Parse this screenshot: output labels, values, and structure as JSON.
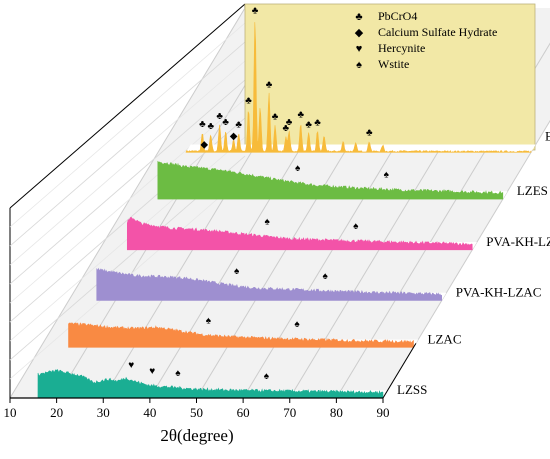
{
  "chart_data": {
    "type": "area",
    "title": "",
    "xlabel": "2θ(degree)",
    "ylabel": "",
    "xlim": [
      10,
      90
    ],
    "xticks": [
      10,
      20,
      30,
      40,
      50,
      60,
      70,
      80,
      90
    ],
    "grid": true,
    "legend_position": "top-right",
    "legend": [
      {
        "symbol": "♣",
        "label": "PbCrO4"
      },
      {
        "symbol": "◆",
        "label": "Calcium Sulfate Hydrate"
      },
      {
        "symbol": "♥",
        "label": "Hercynite"
      },
      {
        "symbol": "♠",
        "label": "Wstite"
      }
    ],
    "series": [
      {
        "name": "LZSS",
        "color": "#1aae93",
        "x_start": 16,
        "x_end": 90,
        "profile": [
          [
            16,
            0.38
          ],
          [
            20,
            0.44
          ],
          [
            25,
            0.36
          ],
          [
            28,
            0.25
          ],
          [
            31,
            0.3
          ],
          [
            33,
            0.27
          ],
          [
            35,
            0.32
          ],
          [
            37,
            0.26
          ],
          [
            40,
            0.2
          ],
          [
            45,
            0.17
          ],
          [
            50,
            0.14
          ],
          [
            55,
            0.13
          ],
          [
            60,
            0.12
          ],
          [
            70,
            0.11
          ],
          [
            80,
            0.1
          ],
          [
            90,
            0.09
          ]
        ],
        "markers": [
          {
            "x": 36,
            "symbol": "♥"
          },
          {
            "x": 40.5,
            "symbol": "♥"
          },
          {
            "x": 46,
            "symbol": "♠"
          },
          {
            "x": 65,
            "symbol": "♠"
          }
        ]
      },
      {
        "name": "LZAC",
        "color": "#f98a43",
        "x_start": 16,
        "x_end": 90,
        "profile": [
          [
            16,
            0.38
          ],
          [
            20,
            0.36
          ],
          [
            25,
            0.32
          ],
          [
            30,
            0.3
          ],
          [
            35,
            0.32
          ],
          [
            40,
            0.26
          ],
          [
            45,
            0.2
          ],
          [
            50,
            0.17
          ],
          [
            60,
            0.14
          ],
          [
            70,
            0.12
          ],
          [
            80,
            0.1
          ],
          [
            90,
            0.09
          ]
        ],
        "markers": [
          {
            "x": 46,
            "symbol": "♠"
          },
          {
            "x": 65,
            "symbol": "♠"
          }
        ]
      },
      {
        "name": "PVA-KH-LZAC",
        "color": "#9e8fd0",
        "x_start": 16,
        "x_end": 90,
        "profile": [
          [
            16,
            0.5
          ],
          [
            19,
            0.46
          ],
          [
            24,
            0.4
          ],
          [
            30,
            0.38
          ],
          [
            35,
            0.36
          ],
          [
            40,
            0.3
          ],
          [
            45,
            0.24
          ],
          [
            50,
            0.2
          ],
          [
            60,
            0.17
          ],
          [
            70,
            0.14
          ],
          [
            80,
            0.12
          ],
          [
            90,
            0.1
          ]
        ],
        "markers": [
          {
            "x": 46,
            "symbol": "♠"
          },
          {
            "x": 65,
            "symbol": "♠"
          }
        ]
      },
      {
        "name": "PVA-KH-LZES",
        "color": "#f353a8",
        "x_start": 16,
        "x_end": 90,
        "profile": [
          [
            16,
            0.45
          ],
          [
            17,
            0.52
          ],
          [
            19,
            0.42
          ],
          [
            25,
            0.35
          ],
          [
            30,
            0.33
          ],
          [
            35,
            0.3
          ],
          [
            40,
            0.26
          ],
          [
            45,
            0.22
          ],
          [
            50,
            0.18
          ],
          [
            60,
            0.15
          ],
          [
            70,
            0.13
          ],
          [
            80,
            0.11
          ],
          [
            90,
            0.09
          ]
        ],
        "markers": [
          {
            "x": 46,
            "symbol": "♠"
          },
          {
            "x": 65,
            "symbol": "♠"
          }
        ]
      },
      {
        "name": "LZES",
        "color": "#6cbc43",
        "x_start": 16,
        "x_end": 90,
        "profile": [
          [
            16,
            0.6
          ],
          [
            18,
            0.58
          ],
          [
            22,
            0.52
          ],
          [
            25,
            0.5
          ],
          [
            30,
            0.46
          ],
          [
            35,
            0.4
          ],
          [
            40,
            0.33
          ],
          [
            45,
            0.27
          ],
          [
            50,
            0.22
          ],
          [
            60,
            0.17
          ],
          [
            70,
            0.14
          ],
          [
            80,
            0.12
          ],
          [
            90,
            0.1
          ]
        ],
        "markers": [
          {
            "x": 46,
            "symbol": "♠"
          },
          {
            "x": 65,
            "symbol": "♠"
          }
        ]
      },
      {
        "name": "ES",
        "color": "#f7bb3a",
        "x_start": 16,
        "x_end": 90,
        "profile": [
          [
            16,
            0.06
          ],
          [
            30,
            0.05
          ],
          [
            60,
            0.05
          ],
          [
            90,
            0.04
          ]
        ],
        "peaks": [
          [
            19.5,
            0.9
          ],
          [
            21.3,
            0.8
          ],
          [
            23.2,
            1.3
          ],
          [
            24.5,
            1.0
          ],
          [
            26.2,
            0.6
          ],
          [
            27.3,
            0.9
          ],
          [
            29.4,
            2.1
          ],
          [
            30.8,
            6.6
          ],
          [
            31.9,
            2.2
          ],
          [
            33.8,
            2.9
          ],
          [
            35.1,
            1.3
          ],
          [
            37.4,
            0.7
          ],
          [
            38.1,
            1.0
          ],
          [
            40.6,
            1.4
          ],
          [
            42.3,
            0.9
          ],
          [
            44.2,
            1.0
          ],
          [
            45.6,
            0.8
          ],
          [
            49.7,
            0.5
          ],
          [
            52.4,
            0.4
          ],
          [
            55.3,
            0.5
          ],
          [
            58.2,
            0.3
          ]
        ],
        "markers": [
          {
            "x": 19.5,
            "symbol": "♣"
          },
          {
            "x": 21.3,
            "symbol": "♣"
          },
          {
            "x": 19.9,
            "symbol": "◆"
          },
          {
            "x": 23.2,
            "symbol": "♣"
          },
          {
            "x": 24.5,
            "symbol": "♣"
          },
          {
            "x": 26.2,
            "symbol": "◆"
          },
          {
            "x": 27.3,
            "symbol": "♣"
          },
          {
            "x": 29.4,
            "symbol": "♣"
          },
          {
            "x": 30.8,
            "symbol": "♣"
          },
          {
            "x": 33.8,
            "symbol": "♣"
          },
          {
            "x": 35.1,
            "symbol": "♣"
          },
          {
            "x": 37.4,
            "symbol": "♣"
          },
          {
            "x": 38.1,
            "symbol": "♣"
          },
          {
            "x": 40.6,
            "symbol": "♣"
          },
          {
            "x": 42.3,
            "symbol": "♣"
          },
          {
            "x": 44.2,
            "symbol": "♣"
          },
          {
            "x": 55.3,
            "symbol": "♣"
          }
        ]
      }
    ]
  },
  "colors": {
    "frame": "#000000",
    "grid": "#cccccc",
    "floor": "#f2f2f2",
    "legend_background": "#f2e8a6"
  }
}
